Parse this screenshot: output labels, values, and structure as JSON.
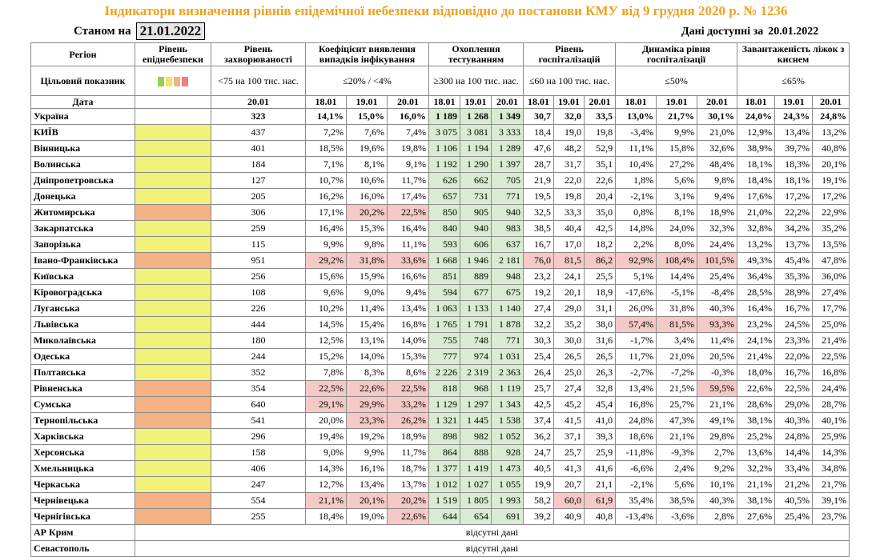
{
  "title": "Індикатори визначення рівнів епідемічної небезпеки відповідно до постанови КМУ від 9 грудня 2020 р. № 1236",
  "as_of_label": "Станом на",
  "as_of_date": "21.01.2022",
  "available_label": "Дані доступні за",
  "available_date": "20.01.2022",
  "table": {
    "headers": [
      "Регіон",
      "Рівень епіднебезпеки",
      "Рівень захворюваності",
      "Коефіцієнт виявлення випадків інфікування",
      "Охоплення тестуванням",
      "Рівень госпіталізацій",
      "Динаміка рівня госпіталізації",
      "Завантаженість ліжок з киснем"
    ],
    "target_label": "Цільовий показник",
    "targets": [
      "<75 на 100 тис. нас.",
      "≤20% / <4%",
      "≥300 на 100 тис. нас.",
      "≤60 на 100 тис. нас.",
      "≤50%",
      "≤65%"
    ],
    "date_label": "Дата",
    "dates": [
      "20.01",
      "18.01",
      "19.01",
      "20.01",
      "18.01",
      "19.01",
      "20.01",
      "18.01",
      "19.01",
      "20.01",
      "18.01",
      "19.01",
      "20.01",
      "18.01",
      "19.01",
      "20.01"
    ],
    "rows": [
      {
        "region": "Україна",
        "level_color": "#ffffff",
        "values": [
          "323",
          "14,1%",
          "15,0%",
          "16,0%",
          "1 189",
          "1 268",
          "1 349",
          "30,7",
          "32,0",
          "33,5",
          "13,0%",
          "21,7%",
          "30,1%",
          "24,0%",
          "24,3%",
          "24,8%"
        ],
        "highlighted": []
      },
      {
        "region": "КИЇВ",
        "level_color": "#f2f27a",
        "values": [
          "437",
          "7,2%",
          "7,6%",
          "7,4%",
          "3 075",
          "3 081",
          "3 333",
          "18,4",
          "19,0",
          "19,8",
          "-3,4%",
          "9,9%",
          "21,0%",
          "12,9%",
          "13,4%",
          "13,2%"
        ],
        "highlighted": []
      },
      {
        "region": "Вінницька",
        "level_color": "#f2f27a",
        "values": [
          "401",
          "18,5%",
          "19,6%",
          "19,8%",
          "1 106",
          "1 194",
          "1 289",
          "47,6",
          "48,2",
          "52,9",
          "11,1%",
          "15,8%",
          "32,6%",
          "38,9%",
          "39,7%",
          "40,8%"
        ],
        "highlighted": []
      },
      {
        "region": "Волинська",
        "level_color": "#f2f27a",
        "values": [
          "184",
          "7,1%",
          "8,1%",
          "9,1%",
          "1 192",
          "1 290",
          "1 397",
          "28,7",
          "31,7",
          "35,1",
          "10,4%",
          "27,2%",
          "48,4%",
          "18,1%",
          "18,3%",
          "20,1%"
        ],
        "highlighted": []
      },
      {
        "region": "Дніпропетровська",
        "level_color": "#f2f27a",
        "values": [
          "127",
          "10,7%",
          "10,6%",
          "11,7%",
          "626",
          "662",
          "705",
          "21,9",
          "22,0",
          "22,6",
          "1,8%",
          "5,6%",
          "9,8%",
          "18,4%",
          "18,1%",
          "19,1%"
        ],
        "highlighted": []
      },
      {
        "region": "Донецька",
        "level_color": "#f2f27a",
        "values": [
          "205",
          "16,2%",
          "16,0%",
          "17,4%",
          "657",
          "731",
          "771",
          "19,5",
          "19,8",
          "20,4",
          "-2,1%",
          "3,1%",
          "9,4%",
          "17,6%",
          "17,2%",
          "17,2%"
        ],
        "highlighted": []
      },
      {
        "region": "Житомирська",
        "level_color": "#f4b183",
        "values": [
          "306",
          "17,1%",
          "20,2%",
          "22,5%",
          "850",
          "905",
          "940",
          "32,5",
          "33,3",
          "35,0",
          "0,8%",
          "8,1%",
          "18,9%",
          "21,0%",
          "22,2%",
          "22,9%"
        ],
        "highlighted": [
          2,
          3
        ]
      },
      {
        "region": "Закарпатська",
        "level_color": "#f2f27a",
        "values": [
          "259",
          "16,4%",
          "15,3%",
          "16,4%",
          "840",
          "940",
          "983",
          "38,5",
          "40,4",
          "42,5",
          "14,8%",
          "24,0%",
          "32,3%",
          "32,8%",
          "34,2%",
          "35,2%"
        ],
        "highlighted": []
      },
      {
        "region": "Запорізька",
        "level_color": "#f2f27a",
        "values": [
          "115",
          "9,9%",
          "9,8%",
          "11,1%",
          "593",
          "606",
          "637",
          "16,7",
          "17,0",
          "18,2",
          "2,2%",
          "8,0%",
          "24,4%",
          "13,2%",
          "13,7%",
          "13,5%"
        ],
        "highlighted": []
      },
      {
        "region": "Івано-Франківська",
        "level_color": "#f4b183",
        "values": [
          "951",
          "29,2%",
          "31,8%",
          "33,6%",
          "1 668",
          "1 946",
          "2 181",
          "76,0",
          "81,5",
          "86,2",
          "92,9%",
          "108,4%",
          "101,5%",
          "49,3%",
          "45,4%",
          "47,8%"
        ],
        "highlighted": [
          1,
          2,
          3,
          7,
          8,
          9,
          10,
          11,
          12
        ]
      },
      {
        "region": "Київська",
        "level_color": "#f2f27a",
        "values": [
          "256",
          "15,6%",
          "15,9%",
          "16,6%",
          "851",
          "889",
          "948",
          "23,2",
          "24,1",
          "25,5",
          "5,1%",
          "14,4%",
          "25,4%",
          "36,4%",
          "35,3%",
          "36,0%"
        ],
        "highlighted": []
      },
      {
        "region": "Кіровоградська",
        "level_color": "#f2f27a",
        "values": [
          "108",
          "9,6%",
          "9,0%",
          "9,4%",
          "594",
          "677",
          "675",
          "19,2",
          "20,1",
          "18,9",
          "-17,6%",
          "-5,1%",
          "-8,4%",
          "28,5%",
          "28,9%",
          "27,4%"
        ],
        "highlighted": []
      },
      {
        "region": "Луганська",
        "level_color": "#f2f27a",
        "values": [
          "226",
          "10,2%",
          "11,4%",
          "13,4%",
          "1 063",
          "1 133",
          "1 140",
          "27,4",
          "29,0",
          "31,1",
          "26,0%",
          "31,8%",
          "40,3%",
          "16,4%",
          "16,7%",
          "17,7%"
        ],
        "highlighted": []
      },
      {
        "region": "Львівська",
        "level_color": "#f2f27a",
        "values": [
          "444",
          "14,5%",
          "15,4%",
          "16,8%",
          "1 765",
          "1 791",
          "1 878",
          "32,2",
          "35,2",
          "38,0",
          "57,4%",
          "81,5%",
          "93,3%",
          "23,2%",
          "24,5%",
          "25,0%"
        ],
        "highlighted": [
          10,
          11,
          12
        ]
      },
      {
        "region": "Миколаївська",
        "level_color": "#f2f27a",
        "values": [
          "180",
          "12,5%",
          "13,1%",
          "14,0%",
          "755",
          "748",
          "771",
          "30,3",
          "30,0",
          "31,6",
          "-1,7%",
          "3,4%",
          "11,4%",
          "24,1%",
          "23,3%",
          "21,4%"
        ],
        "highlighted": []
      },
      {
        "region": "Одеська",
        "level_color": "#f2f27a",
        "values": [
          "244",
          "15,2%",
          "14,0%",
          "15,3%",
          "777",
          "974",
          "1 031",
          "25,4",
          "26,5",
          "26,5",
          "11,7%",
          "21,0%",
          "20,5%",
          "21,4%",
          "22,0%",
          "22,5%"
        ],
        "highlighted": []
      },
      {
        "region": "Полтавська",
        "level_color": "#f2f27a",
        "values": [
          "352",
          "7,8%",
          "8,3%",
          "8,6%",
          "2 226",
          "2 319",
          "2 363",
          "26,4",
          "25,0",
          "26,3",
          "-2,7%",
          "-7,2%",
          "-0,3%",
          "18,0%",
          "16,7%",
          "16,8%"
        ],
        "highlighted": []
      },
      {
        "region": "Рівненська",
        "level_color": "#f4b183",
        "values": [
          "354",
          "22,5%",
          "22,6%",
          "22,5%",
          "818",
          "968",
          "1 119",
          "25,7",
          "27,4",
          "32,8",
          "13,4%",
          "21,5%",
          "59,5%",
          "22,6%",
          "22,5%",
          "24,4%"
        ],
        "highlighted": [
          1,
          2,
          3,
          12
        ]
      },
      {
        "region": "Сумська",
        "level_color": "#f4b183",
        "values": [
          "640",
          "29,1%",
          "29,9%",
          "33,2%",
          "1 129",
          "1 297",
          "1 343",
          "42,5",
          "45,2",
          "45,4",
          "16,8%",
          "25,7%",
          "21,1%",
          "28,6%",
          "29,0%",
          "28,7%"
        ],
        "highlighted": [
          1,
          2,
          3
        ]
      },
      {
        "region": "Тернопільська",
        "level_color": "#f4b183",
        "values": [
          "541",
          "20,0%",
          "23,3%",
          "26,2%",
          "1 321",
          "1 445",
          "1 538",
          "37,4",
          "41,5",
          "41,0",
          "24,8%",
          "47,3%",
          "49,1%",
          "38,1%",
          "40,3%",
          "40,1%"
        ],
        "highlighted": [
          2,
          3
        ]
      },
      {
        "region": "Харківська",
        "level_color": "#f2f27a",
        "values": [
          "296",
          "19,4%",
          "19,2%",
          "18,9%",
          "898",
          "982",
          "1 052",
          "36,2",
          "37,1",
          "39,3",
          "18,6%",
          "21,1%",
          "29,8%",
          "25,2%",
          "24,8%",
          "25,9%"
        ],
        "highlighted": []
      },
      {
        "region": "Херсонська",
        "level_color": "#f2f27a",
        "values": [
          "158",
          "9,0%",
          "9,9%",
          "11,7%",
          "864",
          "888",
          "928",
          "24,7",
          "25,7",
          "25,9",
          "-11,8%",
          "-9,3%",
          "2,7%",
          "13,6%",
          "14,4%",
          "14,3%"
        ],
        "highlighted": []
      },
      {
        "region": "Хмельницька",
        "level_color": "#f2f27a",
        "values": [
          "406",
          "14,3%",
          "16,1%",
          "18,7%",
          "1 377",
          "1 419",
          "1 473",
          "40,5",
          "41,3",
          "41,6",
          "-6,6%",
          "2,4%",
          "9,2%",
          "32,2%",
          "33,4%",
          "34,8%"
        ],
        "highlighted": []
      },
      {
        "region": "Черкаська",
        "level_color": "#f2f27a",
        "values": [
          "247",
          "12,7%",
          "13,4%",
          "13,7%",
          "1 012",
          "1 027",
          "1 055",
          "19,9",
          "20,7",
          "21,1",
          "-2,1%",
          "5,6%",
          "10,1%",
          "21,1%",
          "21,2%",
          "21,7%"
        ],
        "highlighted": []
      },
      {
        "region": "Чернівецька",
        "level_color": "#f4b183",
        "values": [
          "554",
          "21,1%",
          "20,1%",
          "20,2%",
          "1 519",
          "1 805",
          "1 993",
          "58,2",
          "60,0",
          "61,9",
          "35,4%",
          "38,5%",
          "40,3%",
          "38,1%",
          "40,5%",
          "39,1%"
        ],
        "highlighted": [
          1,
          2,
          3,
          8,
          9
        ]
      },
      {
        "region": "Чернігівська",
        "level_color": "#f4b183",
        "values": [
          "255",
          "18,4%",
          "19,0%",
          "22,6%",
          "644",
          "654",
          "691",
          "39,2",
          "40,9",
          "40,8",
          "-13,4%",
          "-3,6%",
          "2,8%",
          "27,6%",
          "25,4%",
          "23,7%"
        ],
        "highlighted": [
          3
        ]
      }
    ],
    "missing_rows": [
      {
        "region": "АР Крим",
        "note": "відсутні дані"
      },
      {
        "region": "Севастополь",
        "note": "відсутні дані"
      }
    ]
  }
}
